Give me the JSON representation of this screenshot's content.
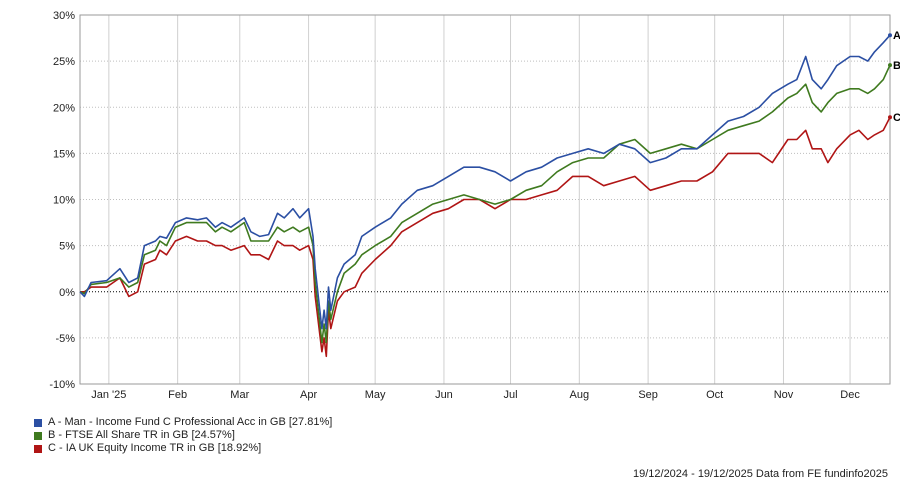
{
  "chart_data": {
    "type": "line",
    "y_ticks": [
      30,
      25,
      20,
      15,
      10,
      5,
      0,
      -5,
      -10
    ],
    "y_tick_labels": [
      "30%",
      "25%",
      "20%",
      "15%",
      "10%",
      "5%",
      "0%",
      "-5%",
      "-10%"
    ],
    "ylim": [
      -10,
      30
    ],
    "x_start": "2024-12-19",
    "x_end": "2025-12-19",
    "x_ticks": [
      {
        "label": "Jan '25",
        "date": "2025-01-01"
      },
      {
        "label": "Feb",
        "date": "2025-02-01"
      },
      {
        "label": "Mar",
        "date": "2025-03-01"
      },
      {
        "label": "Apr",
        "date": "2025-04-01"
      },
      {
        "label": "May",
        "date": "2025-05-01"
      },
      {
        "label": "Jun",
        "date": "2025-06-01"
      },
      {
        "label": "Jul",
        "date": "2025-07-01"
      },
      {
        "label": "Aug",
        "date": "2025-08-01"
      },
      {
        "label": "Sep",
        "date": "2025-09-01"
      },
      {
        "label": "Oct",
        "date": "2025-10-01"
      },
      {
        "label": "Nov",
        "date": "2025-11-01"
      },
      {
        "label": "Dec",
        "date": "2025-12-01"
      }
    ],
    "grid": true,
    "zero_line": "dotted",
    "series": [
      {
        "id": "A",
        "name": "A - Man - Income Fund C Professional Acc in GB [27.81%]",
        "end_label": "A",
        "color": "#2b4fa3",
        "points": [
          [
            "2024-12-19",
            0
          ],
          [
            "2024-12-21",
            -0.5
          ],
          [
            "2024-12-24",
            1.0
          ],
          [
            "2024-12-31",
            1.2
          ],
          [
            "2025-01-06",
            2.5
          ],
          [
            "2025-01-10",
            1.0
          ],
          [
            "2025-01-14",
            1.5
          ],
          [
            "2025-01-17",
            5.0
          ],
          [
            "2025-01-22",
            5.5
          ],
          [
            "2025-01-24",
            6.0
          ],
          [
            "2025-01-27",
            5.8
          ],
          [
            "2025-01-31",
            7.5
          ],
          [
            "2025-02-05",
            8.0
          ],
          [
            "2025-02-10",
            7.8
          ],
          [
            "2025-02-14",
            8.0
          ],
          [
            "2025-02-18",
            7.0
          ],
          [
            "2025-02-21",
            7.5
          ],
          [
            "2025-02-25",
            7.0
          ],
          [
            "2025-03-03",
            8.0
          ],
          [
            "2025-03-06",
            6.5
          ],
          [
            "2025-03-10",
            6.0
          ],
          [
            "2025-03-14",
            6.2
          ],
          [
            "2025-03-18",
            8.5
          ],
          [
            "2025-03-21",
            8.0
          ],
          [
            "2025-03-25",
            9.0
          ],
          [
            "2025-03-28",
            8.0
          ],
          [
            "2025-04-01",
            9.0
          ],
          [
            "2025-04-03",
            6.0
          ],
          [
            "2025-04-04",
            2.5
          ],
          [
            "2025-04-07",
            -4.0
          ],
          [
            "2025-04-08",
            -2.0
          ],
          [
            "2025-04-09",
            -4.0
          ],
          [
            "2025-04-10",
            0.5
          ],
          [
            "2025-04-11",
            -2.0
          ],
          [
            "2025-04-14",
            1.5
          ],
          [
            "2025-04-17",
            3.0
          ],
          [
            "2025-04-22",
            4.0
          ],
          [
            "2025-04-25",
            6.0
          ],
          [
            "2025-05-01",
            7.0
          ],
          [
            "2025-05-08",
            8.0
          ],
          [
            "2025-05-13",
            9.5
          ],
          [
            "2025-05-20",
            11.0
          ],
          [
            "2025-05-27",
            11.5
          ],
          [
            "2025-06-03",
            12.5
          ],
          [
            "2025-06-10",
            13.5
          ],
          [
            "2025-06-17",
            13.5
          ],
          [
            "2025-06-24",
            13.0
          ],
          [
            "2025-07-01",
            12.0
          ],
          [
            "2025-07-08",
            13.0
          ],
          [
            "2025-07-15",
            13.5
          ],
          [
            "2025-07-22",
            14.5
          ],
          [
            "2025-07-29",
            15.0
          ],
          [
            "2025-08-05",
            15.5
          ],
          [
            "2025-08-12",
            15.0
          ],
          [
            "2025-08-19",
            16.0
          ],
          [
            "2025-08-26",
            15.5
          ],
          [
            "2025-09-02",
            14.0
          ],
          [
            "2025-09-09",
            14.5
          ],
          [
            "2025-09-16",
            15.5
          ],
          [
            "2025-09-23",
            15.5
          ],
          [
            "2025-09-30",
            17.0
          ],
          [
            "2025-10-07",
            18.5
          ],
          [
            "2025-10-14",
            19.0
          ],
          [
            "2025-10-21",
            20.0
          ],
          [
            "2025-10-27",
            21.5
          ],
          [
            "2025-11-03",
            22.5
          ],
          [
            "2025-11-07",
            23.0
          ],
          [
            "2025-11-11",
            25.5
          ],
          [
            "2025-11-14",
            23.0
          ],
          [
            "2025-11-18",
            22.0
          ],
          [
            "2025-11-21",
            23.0
          ],
          [
            "2025-11-25",
            24.5
          ],
          [
            "2025-12-01",
            25.5
          ],
          [
            "2025-12-05",
            25.5
          ],
          [
            "2025-12-09",
            25.0
          ],
          [
            "2025-12-12",
            26.0
          ],
          [
            "2025-12-16",
            27.0
          ],
          [
            "2025-12-19",
            27.81
          ]
        ]
      },
      {
        "id": "B",
        "name": "B - FTSE All Share TR in GB [24.57%]",
        "end_label": "B",
        "color": "#3f7a1f",
        "points": [
          [
            "2024-12-19",
            0
          ],
          [
            "2024-12-21",
            -0.2
          ],
          [
            "2024-12-24",
            0.8
          ],
          [
            "2024-12-31",
            1.0
          ],
          [
            "2025-01-06",
            1.5
          ],
          [
            "2025-01-10",
            0.5
          ],
          [
            "2025-01-14",
            1.0
          ],
          [
            "2025-01-17",
            4.0
          ],
          [
            "2025-01-22",
            4.5
          ],
          [
            "2025-01-24",
            5.5
          ],
          [
            "2025-01-27",
            5.0
          ],
          [
            "2025-01-31",
            7.0
          ],
          [
            "2025-02-05",
            7.5
          ],
          [
            "2025-02-10",
            7.5
          ],
          [
            "2025-02-14",
            7.5
          ],
          [
            "2025-02-18",
            6.5
          ],
          [
            "2025-02-21",
            7.0
          ],
          [
            "2025-02-25",
            6.5
          ],
          [
            "2025-03-03",
            7.5
          ],
          [
            "2025-03-06",
            5.5
          ],
          [
            "2025-03-10",
            5.5
          ],
          [
            "2025-03-14",
            5.5
          ],
          [
            "2025-03-18",
            7.0
          ],
          [
            "2025-03-21",
            6.5
          ],
          [
            "2025-03-25",
            7.0
          ],
          [
            "2025-03-28",
            6.5
          ],
          [
            "2025-04-01",
            7.0
          ],
          [
            "2025-04-03",
            5.0
          ],
          [
            "2025-04-04",
            1.0
          ],
          [
            "2025-04-07",
            -5.5
          ],
          [
            "2025-04-08",
            -3.5
          ],
          [
            "2025-04-09",
            -5.5
          ],
          [
            "2025-04-10",
            -1.0
          ],
          [
            "2025-04-11",
            -3.0
          ],
          [
            "2025-04-14",
            0.0
          ],
          [
            "2025-04-17",
            2.0
          ],
          [
            "2025-04-22",
            3.0
          ],
          [
            "2025-04-25",
            4.0
          ],
          [
            "2025-05-01",
            5.0
          ],
          [
            "2025-05-08",
            6.0
          ],
          [
            "2025-05-13",
            7.5
          ],
          [
            "2025-05-20",
            8.5
          ],
          [
            "2025-05-27",
            9.5
          ],
          [
            "2025-06-03",
            10.0
          ],
          [
            "2025-06-10",
            10.5
          ],
          [
            "2025-06-17",
            10.0
          ],
          [
            "2025-06-24",
            9.5
          ],
          [
            "2025-07-01",
            10.0
          ],
          [
            "2025-07-08",
            11.0
          ],
          [
            "2025-07-15",
            11.5
          ],
          [
            "2025-07-22",
            13.0
          ],
          [
            "2025-07-29",
            14.0
          ],
          [
            "2025-08-05",
            14.5
          ],
          [
            "2025-08-12",
            14.5
          ],
          [
            "2025-08-19",
            16.0
          ],
          [
            "2025-08-26",
            16.5
          ],
          [
            "2025-09-02",
            15.0
          ],
          [
            "2025-09-09",
            15.5
          ],
          [
            "2025-09-16",
            16.0
          ],
          [
            "2025-09-23",
            15.5
          ],
          [
            "2025-09-30",
            16.5
          ],
          [
            "2025-10-07",
            17.5
          ],
          [
            "2025-10-14",
            18.0
          ],
          [
            "2025-10-21",
            18.5
          ],
          [
            "2025-10-27",
            19.5
          ],
          [
            "2025-11-03",
            21.0
          ],
          [
            "2025-11-07",
            21.5
          ],
          [
            "2025-11-11",
            22.5
          ],
          [
            "2025-11-14",
            20.5
          ],
          [
            "2025-11-18",
            19.5
          ],
          [
            "2025-11-21",
            20.5
          ],
          [
            "2025-11-25",
            21.5
          ],
          [
            "2025-12-01",
            22.0
          ],
          [
            "2025-12-05",
            22.0
          ],
          [
            "2025-12-09",
            21.5
          ],
          [
            "2025-12-12",
            22.0
          ],
          [
            "2025-12-16",
            23.0
          ],
          [
            "2025-12-19",
            24.57
          ]
        ]
      },
      {
        "id": "C",
        "name": "C - IA UK Equity Income TR in GB [18.92%]",
        "end_label": "C",
        "color": "#b01515",
        "points": [
          [
            "2024-12-19",
            0
          ],
          [
            "2024-12-21",
            0.0
          ],
          [
            "2024-12-24",
            0.5
          ],
          [
            "2024-12-31",
            0.5
          ],
          [
            "2025-01-06",
            1.5
          ],
          [
            "2025-01-10",
            -0.5
          ],
          [
            "2025-01-14",
            0.0
          ],
          [
            "2025-01-17",
            3.0
          ],
          [
            "2025-01-22",
            3.5
          ],
          [
            "2025-01-24",
            4.5
          ],
          [
            "2025-01-27",
            4.0
          ],
          [
            "2025-01-31",
            5.5
          ],
          [
            "2025-02-05",
            6.0
          ],
          [
            "2025-02-10",
            5.5
          ],
          [
            "2025-02-14",
            5.5
          ],
          [
            "2025-02-18",
            5.0
          ],
          [
            "2025-02-21",
            5.0
          ],
          [
            "2025-02-25",
            4.5
          ],
          [
            "2025-03-03",
            5.0
          ],
          [
            "2025-03-06",
            4.0
          ],
          [
            "2025-03-10",
            4.0
          ],
          [
            "2025-03-14",
            3.5
          ],
          [
            "2025-03-18",
            5.5
          ],
          [
            "2025-03-21",
            5.0
          ],
          [
            "2025-03-25",
            5.0
          ],
          [
            "2025-03-28",
            4.5
          ],
          [
            "2025-04-01",
            5.0
          ],
          [
            "2025-04-03",
            3.5
          ],
          [
            "2025-04-04",
            -0.5
          ],
          [
            "2025-04-07",
            -6.5
          ],
          [
            "2025-04-08",
            -5.0
          ],
          [
            "2025-04-09",
            -7.0
          ],
          [
            "2025-04-10",
            -2.0
          ],
          [
            "2025-04-11",
            -4.0
          ],
          [
            "2025-04-14",
            -1.0
          ],
          [
            "2025-04-17",
            0.0
          ],
          [
            "2025-04-22",
            0.5
          ],
          [
            "2025-04-25",
            2.0
          ],
          [
            "2025-05-01",
            3.5
          ],
          [
            "2025-05-08",
            5.0
          ],
          [
            "2025-05-13",
            6.5
          ],
          [
            "2025-05-20",
            7.5
          ],
          [
            "2025-05-27",
            8.5
          ],
          [
            "2025-06-03",
            9.0
          ],
          [
            "2025-06-10",
            10.0
          ],
          [
            "2025-06-17",
            10.0
          ],
          [
            "2025-06-24",
            9.0
          ],
          [
            "2025-07-01",
            10.0
          ],
          [
            "2025-07-08",
            10.0
          ],
          [
            "2025-07-15",
            10.5
          ],
          [
            "2025-07-22",
            11.0
          ],
          [
            "2025-07-29",
            12.5
          ],
          [
            "2025-08-05",
            12.5
          ],
          [
            "2025-08-12",
            11.5
          ],
          [
            "2025-08-19",
            12.0
          ],
          [
            "2025-08-26",
            12.5
          ],
          [
            "2025-09-02",
            11.0
          ],
          [
            "2025-09-09",
            11.5
          ],
          [
            "2025-09-16",
            12.0
          ],
          [
            "2025-09-23",
            12.0
          ],
          [
            "2025-09-30",
            13.0
          ],
          [
            "2025-10-07",
            15.0
          ],
          [
            "2025-10-14",
            15.0
          ],
          [
            "2025-10-21",
            15.0
          ],
          [
            "2025-10-27",
            14.0
          ],
          [
            "2025-11-03",
            16.5
          ],
          [
            "2025-11-07",
            16.5
          ],
          [
            "2025-11-11",
            17.5
          ],
          [
            "2025-11-14",
            15.5
          ],
          [
            "2025-11-18",
            15.5
          ],
          [
            "2025-11-21",
            14.0
          ],
          [
            "2025-11-25",
            15.5
          ],
          [
            "2025-12-01",
            17.0
          ],
          [
            "2025-12-05",
            17.5
          ],
          [
            "2025-12-09",
            16.5
          ],
          [
            "2025-12-12",
            17.0
          ],
          [
            "2025-12-16",
            17.5
          ],
          [
            "2025-12-19",
            18.92
          ]
        ]
      }
    ]
  },
  "footer": {
    "text": "19/12/2024 - 19/12/2025 Data from FE fundinfo2025"
  }
}
